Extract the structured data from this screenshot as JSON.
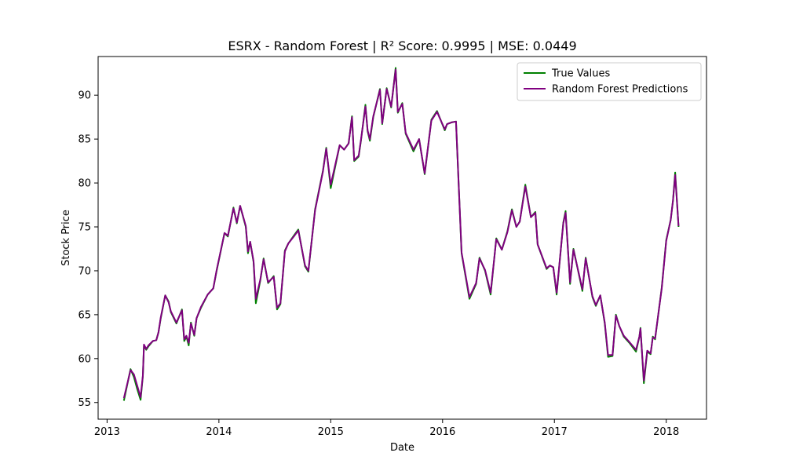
{
  "chart_data": {
    "type": "line",
    "title": "ESRX - Random Forest | R² Score: 0.9995 | MSE: 0.0449",
    "xlabel": "Date",
    "ylabel": "Stock Price",
    "xlim": [
      2012.92,
      2018.36
    ],
    "ylim": [
      53.1,
      94.4
    ],
    "x_ticks": [
      2013,
      2014,
      2015,
      2016,
      2017,
      2018
    ],
    "x_tick_labels": [
      "2013",
      "2014",
      "2015",
      "2016",
      "2017",
      "2018"
    ],
    "y_ticks": [
      55,
      60,
      65,
      70,
      75,
      80,
      85,
      90
    ],
    "y_tick_labels": [
      "55",
      "60",
      "65",
      "70",
      "75",
      "80",
      "85",
      "90"
    ],
    "grid": false,
    "legend_position": "top-right",
    "x": [
      2013.15,
      2013.21,
      2013.24,
      2013.27,
      2013.3,
      2013.32,
      2013.33,
      2013.35,
      2013.37,
      2013.41,
      2013.44,
      2013.46,
      2013.48,
      2013.52,
      2013.55,
      2013.57,
      2013.62,
      2013.67,
      2013.69,
      2013.71,
      2013.73,
      2013.75,
      2013.78,
      2013.8,
      2013.84,
      2013.9,
      2013.95,
      2013.98,
      2014.05,
      2014.08,
      2014.13,
      2014.16,
      2014.19,
      2014.24,
      2014.26,
      2014.28,
      2014.31,
      2014.33,
      2014.37,
      2014.4,
      2014.44,
      2014.49,
      2014.52,
      2014.55,
      2014.59,
      2014.62,
      2014.67,
      2014.71,
      2014.77,
      2014.8,
      2014.86,
      2014.93,
      2014.96,
      2015.0,
      2015.08,
      2015.12,
      2015.16,
      2015.19,
      2015.21,
      2015.25,
      2015.27,
      2015.31,
      2015.33,
      2015.35,
      2015.38,
      2015.44,
      2015.46,
      2015.5,
      2015.54,
      2015.58,
      2015.6,
      2015.64,
      2015.67,
      2015.74,
      2015.79,
      2015.84,
      2015.86,
      2015.9,
      2015.95,
      2016.02,
      2016.04,
      2016.08,
      2016.12,
      2016.17,
      2016.24,
      2016.3,
      2016.33,
      2016.38,
      2016.43,
      2016.48,
      2016.53,
      2016.58,
      2016.62,
      2016.66,
      2016.69,
      2016.74,
      2016.79,
      2016.83,
      2016.85,
      2016.93,
      2016.96,
      2016.99,
      2017.02,
      2017.08,
      2017.1,
      2017.14,
      2017.17,
      2017.25,
      2017.28,
      2017.34,
      2017.37,
      2017.41,
      2017.45,
      2017.48,
      2017.52,
      2017.55,
      2017.58,
      2017.62,
      2017.67,
      2017.73,
      2017.76,
      2017.77,
      2017.8,
      2017.83,
      2017.86,
      2017.88,
      2017.9,
      2017.96,
      2018.0,
      2018.04,
      2018.06,
      2018.08,
      2018.11
    ],
    "series": [
      {
        "name": "True Values",
        "color": "#008000",
        "values": [
          55.2,
          58.8,
          57.9,
          56.5,
          55.3,
          58.0,
          61.5,
          61.0,
          61.4,
          62.0,
          62.1,
          63.0,
          64.6,
          67.2,
          66.5,
          65.3,
          64.0,
          65.6,
          62.0,
          62.5,
          61.5,
          64.1,
          62.6,
          64.6,
          65.8,
          67.3,
          68.0,
          70.0,
          74.3,
          73.9,
          77.2,
          75.4,
          77.4,
          75.0,
          72.0,
          73.3,
          71.0,
          66.3,
          68.9,
          71.4,
          68.6,
          69.4,
          65.6,
          66.2,
          72.3,
          73.1,
          74.0,
          74.7,
          70.5,
          69.9,
          77.0,
          81.4,
          84.0,
          79.4,
          84.3,
          83.8,
          84.5,
          87.6,
          82.5,
          83.0,
          84.8,
          88.9,
          85.9,
          84.8,
          87.5,
          90.7,
          86.7,
          90.8,
          88.6,
          93.1,
          88.0,
          89.1,
          85.6,
          83.6,
          85.0,
          81.0,
          83.0,
          87.2,
          88.2,
          86.0,
          86.7,
          86.9,
          87.0,
          72.0,
          66.8,
          68.5,
          71.5,
          70.0,
          67.3,
          73.7,
          72.4,
          74.5,
          77.0,
          75.0,
          75.6,
          79.8,
          76.1,
          76.7,
          73.0,
          70.2,
          70.6,
          70.4,
          67.3,
          75.5,
          76.8,
          68.5,
          72.5,
          67.7,
          71.5,
          67.0,
          66.0,
          67.2,
          64.0,
          60.2,
          60.3,
          65.0,
          63.7,
          62.5,
          61.8,
          60.8,
          62.5,
          63.5,
          57.2,
          60.8,
          60.5,
          62.5,
          62.2,
          68.1,
          73.5,
          75.8,
          78.0,
          81.2,
          75.0
        ]
      },
      {
        "name": "Random Forest Predictions",
        "color": "#800080",
        "values": [
          55.5,
          58.7,
          58.2,
          56.9,
          55.6,
          58.1,
          61.6,
          61.1,
          61.5,
          62.0,
          62.1,
          63.0,
          64.7,
          67.2,
          66.4,
          65.4,
          64.1,
          65.5,
          62.2,
          62.6,
          61.8,
          64.0,
          62.7,
          64.6,
          65.9,
          67.3,
          68.0,
          70.1,
          74.3,
          74.0,
          77.1,
          75.5,
          77.4,
          75.1,
          72.2,
          73.3,
          71.1,
          66.8,
          69.0,
          71.3,
          68.7,
          69.3,
          65.8,
          66.3,
          72.2,
          73.1,
          73.9,
          74.6,
          70.6,
          70.0,
          76.9,
          81.3,
          83.9,
          79.8,
          84.3,
          83.8,
          84.5,
          87.5,
          82.6,
          83.1,
          84.9,
          88.7,
          86.0,
          85.0,
          87.6,
          90.6,
          86.8,
          90.7,
          88.7,
          92.9,
          88.1,
          89.0,
          85.7,
          83.8,
          85.0,
          81.1,
          83.1,
          87.1,
          88.1,
          86.1,
          86.7,
          86.9,
          87.0,
          72.1,
          67.0,
          68.6,
          71.4,
          70.1,
          67.5,
          73.6,
          72.4,
          74.4,
          76.9,
          75.0,
          75.6,
          79.6,
          76.1,
          76.6,
          73.0,
          70.3,
          70.6,
          70.4,
          67.5,
          75.4,
          76.6,
          68.7,
          72.4,
          67.9,
          71.4,
          67.1,
          66.1,
          67.2,
          64.1,
          60.4,
          60.4,
          64.9,
          63.7,
          62.6,
          61.9,
          61.0,
          62.5,
          63.4,
          57.5,
          60.9,
          60.6,
          62.4,
          62.3,
          68.0,
          73.4,
          75.8,
          78.0,
          80.9,
          75.1
        ]
      }
    ]
  }
}
